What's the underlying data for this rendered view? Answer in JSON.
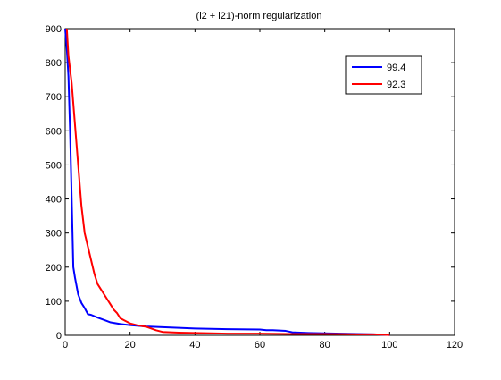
{
  "chart_data": {
    "type": "line",
    "title": "(l2 + l21)-norm regularization",
    "xlabel": "",
    "ylabel": "",
    "xlim": [
      0,
      120
    ],
    "ylim": [
      0,
      900
    ],
    "xticks": [
      0,
      20,
      40,
      60,
      80,
      100,
      120
    ],
    "yticks": [
      0,
      100,
      200,
      300,
      400,
      500,
      600,
      700,
      800,
      900
    ],
    "grid": false,
    "legend_position": "top-right",
    "series": [
      {
        "name": "99.4",
        "color": "#0000ff",
        "x": [
          0,
          0.5,
          1,
          1.5,
          2,
          2.5,
          3,
          4,
          5,
          6,
          7,
          8,
          10,
          12,
          14,
          17,
          20,
          25,
          30,
          40,
          50,
          60,
          62,
          64,
          66,
          68,
          70,
          75,
          80,
          85,
          90,
          95,
          98,
          100
        ],
        "y": [
          900,
          840,
          760,
          600,
          400,
          200,
          170,
          120,
          95,
          80,
          62,
          60,
          52,
          45,
          38,
          33,
          30,
          26,
          24,
          20,
          18,
          17,
          15,
          15,
          14,
          13,
          9,
          7,
          6,
          5,
          4,
          3,
          2,
          1
        ]
      },
      {
        "name": "92.3",
        "color": "#ff0000",
        "x": [
          0.5,
          1,
          1.5,
          2,
          2.5,
          3,
          4,
          5,
          6,
          7,
          8,
          9,
          10,
          11,
          12,
          13,
          14,
          15,
          16,
          17,
          18,
          19,
          20,
          22,
          25,
          28,
          30,
          35,
          40,
          45,
          50,
          60,
          70,
          80,
          90,
          95,
          98,
          100
        ],
        "y": [
          900,
          820,
          780,
          740,
          680,
          620,
          500,
          380,
          300,
          260,
          220,
          180,
          150,
          135,
          120,
          105,
          90,
          75,
          65,
          50,
          45,
          40,
          35,
          30,
          25,
          15,
          10,
          8,
          7,
          6,
          5,
          5,
          4,
          4,
          3,
          3,
          2,
          1
        ]
      }
    ]
  }
}
